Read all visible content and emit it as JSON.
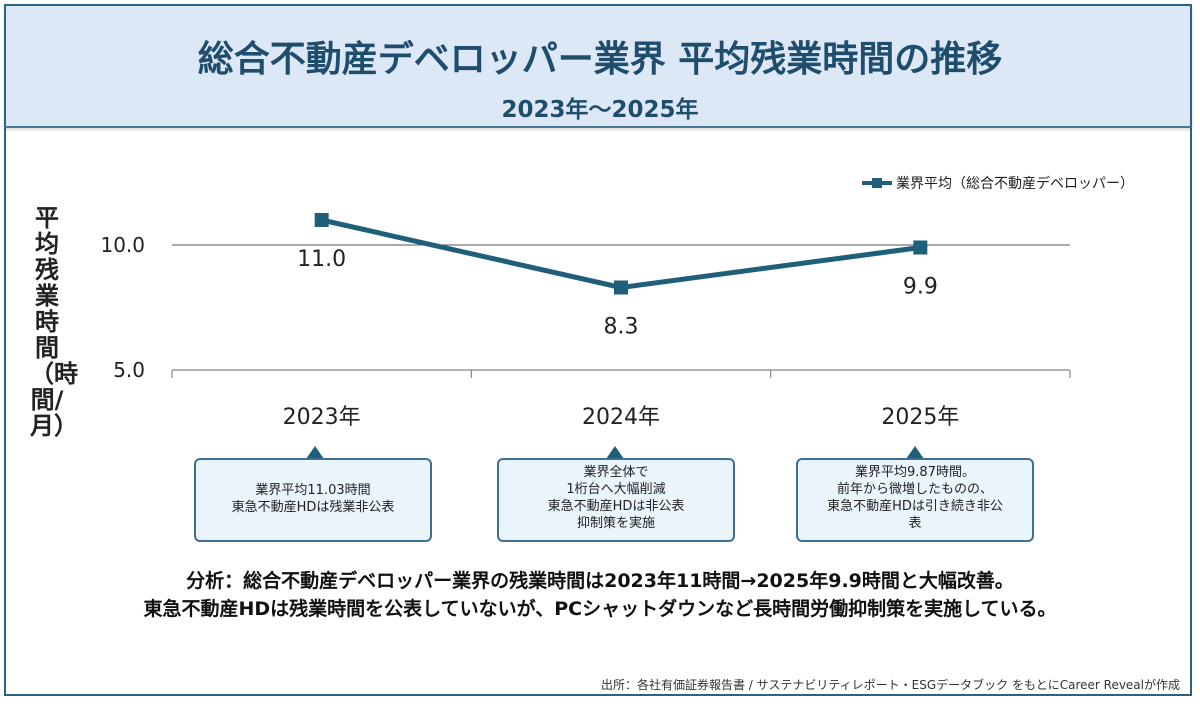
{
  "header": {
    "title": "総合不動産デベロッパー業界 平均残業時間の推移",
    "subtitle": "2023年〜2025年"
  },
  "colors": {
    "series": "#1f5f7a",
    "header_bg": "#dce8f5",
    "border": "#2c6283",
    "callout_bg": "#eaf4fb"
  },
  "chart_data": {
    "type": "line",
    "title": "総合不動産デベロッパー業界 平均残業時間の推移",
    "subtitle": "2023年〜2025年",
    "ylabel": "平均残業時間（時間/月）",
    "xlabel": "",
    "categories": [
      "2023年",
      "2024年",
      "2025年"
    ],
    "series": [
      {
        "name": "業界平均（総合不動産デベロッパー）",
        "values": [
          11.0,
          8.3,
          9.9
        ],
        "labels": [
          "11.0",
          "8.3",
          "9.9"
        ]
      }
    ],
    "yticks": [
      5.0,
      10.0
    ],
    "ytick_labels": [
      "5.0",
      "10.0"
    ],
    "ylim": [
      5.0,
      10.0
    ],
    "grid": "y",
    "legend": "top-right"
  },
  "callouts": [
    {
      "lines": [
        "業界平均11.03時間",
        "東急不動産HDは残業非公表"
      ]
    },
    {
      "lines": [
        "業界全体で",
        "1桁台へ大幅削減",
        "東急不動産HDは非公表",
        "抑制策を実施"
      ]
    },
    {
      "lines": [
        "業界平均9.87時間。",
        "前年から微増したものの、",
        "東急不動産HDは引き続き非公",
        "表"
      ]
    }
  ],
  "analysis": {
    "line1": "分析：総合不動産デベロッパー業界の残業時間は2023年11時間→2025年9.9時間と大幅改善。",
    "line2": "東急不動産HDは残業時間を公表していないが、PCシャットダウンなど長時間労働抑制策を実施している。"
  },
  "source": "出所：各社有価証券報告書 / サステナビリティレポート・ESGデータブック をもとにCareer Revealが作成"
}
